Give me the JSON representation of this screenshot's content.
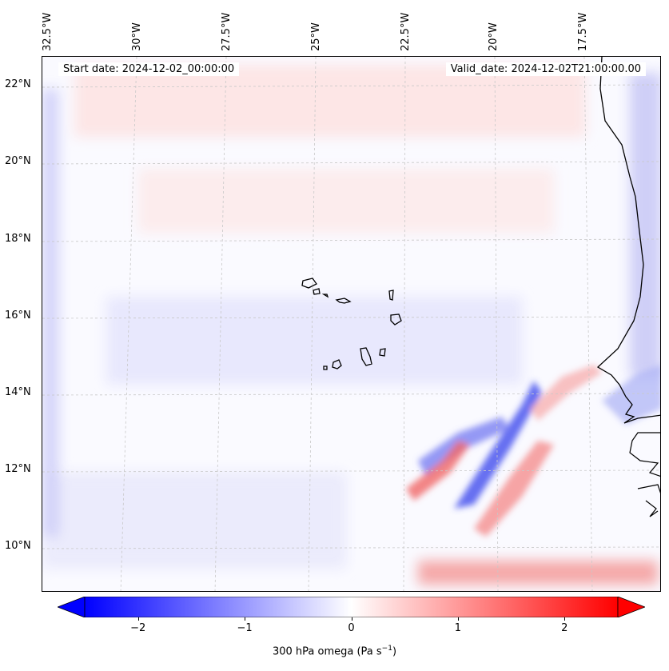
{
  "map": {
    "longitude_labels": [
      "32.5°W",
      "30°W",
      "27.5°W",
      "25°W",
      "22.5°W",
      "20°W",
      "17.5°W"
    ],
    "latitude_labels": [
      "22°N",
      "20°N",
      "18°N",
      "16°N",
      "14°N",
      "12°N",
      "10°N"
    ],
    "start_date": "Start date: 2024-12-02_00:00:00",
    "valid_date": "Valid_date: 2024-12-02T21:00:00.00",
    "field": "300 hPa omega",
    "field_units": "(Pa s",
    "field_units_exp": "−1",
    "field_units_end": ")"
  },
  "colorbar": {
    "ticks": [
      {
        "value": -2,
        "label": "−2"
      },
      {
        "value": -1,
        "label": "−1"
      },
      {
        "value": 0,
        "label": "0"
      },
      {
        "value": 1,
        "label": "1"
      },
      {
        "value": 2,
        "label": "2"
      }
    ],
    "range": [
      -2.5,
      2.5
    ],
    "colors": {
      "negative": "#0000ff",
      "zero": "#ffffff",
      "positive": "#ff0000"
    }
  }
}
